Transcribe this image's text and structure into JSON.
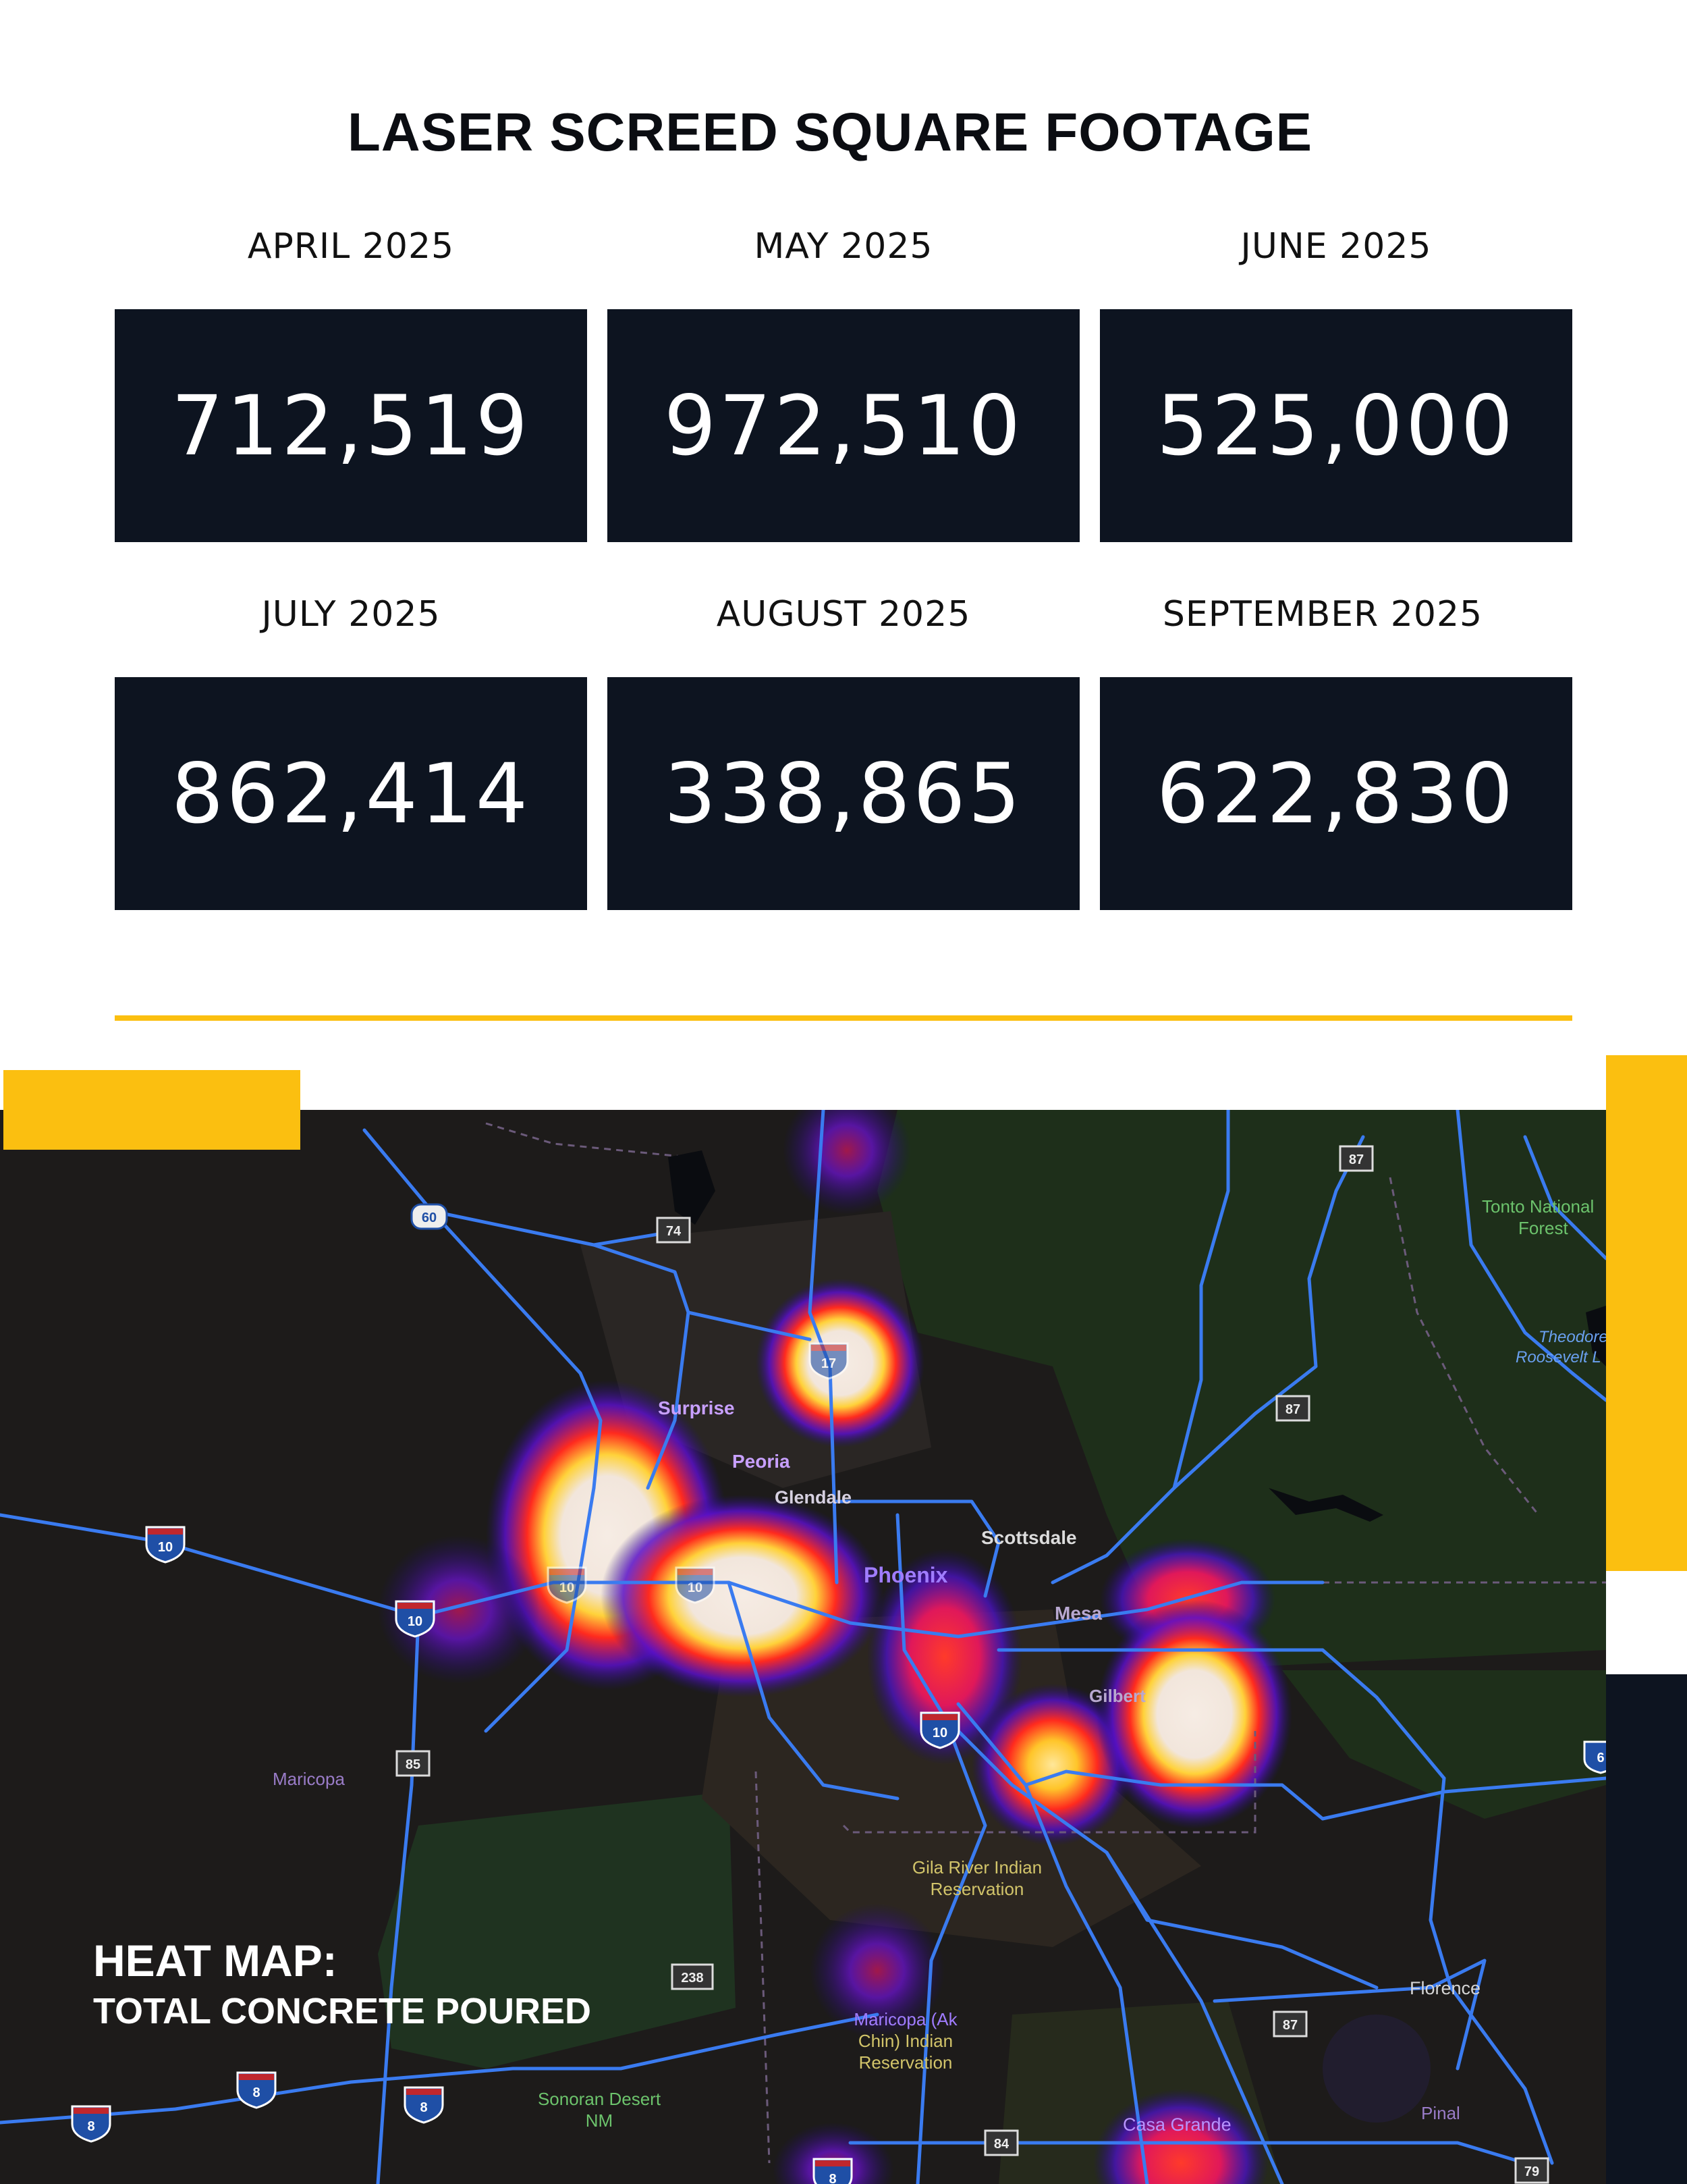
{
  "title": "LASER SCREED SQUARE FOOTAGE",
  "stats": [
    {
      "label": "APRIL 2025",
      "value": "712,519"
    },
    {
      "label": "MAY 2025",
      "value": "972,510"
    },
    {
      "label": "JUNE 2025",
      "value": "525,000"
    },
    {
      "label": "JULY 2025",
      "value": "862,414"
    },
    {
      "label": "AUGUST 2025",
      "value": "338,865"
    },
    {
      "label": "SEPTEMBER 2025",
      "value": "622,830"
    }
  ],
  "colors": {
    "accent": "#fbbf10",
    "box": "#0d1420",
    "map_bg": "#1d1b1a",
    "road": "#3a7bf0"
  },
  "map": {
    "caption_line1": "HEAT MAP:",
    "caption_line2": "TOTAL CONCRETE POURED",
    "places": {
      "surprise": "Surprise",
      "peoria": "Peoria",
      "glendale": "Glendale",
      "scottsdale": "Scottsdale",
      "phoenix": "Phoenix",
      "mesa": "Mesa",
      "gilbert": "Gilbert",
      "maricopa": "Maricopa",
      "gila_1": "Gila River Indian",
      "gila_2": "Reservation",
      "ak_1": "Maricopa (Ak",
      "ak_2": "Chin) Indian",
      "ak_3": "Reservation",
      "sonoran_1": "Sonoran Desert",
      "sonoran_2": "NM",
      "casa_grande": "Casa Grande",
      "florence": "Florence",
      "pinal": "Pinal",
      "tonto_1": "Tonto National",
      "tonto_2": "Forest",
      "theodore_1": "Theodore",
      "theodore_2": "Roosevelt L"
    },
    "shields": {
      "i10a": "10",
      "i10b": "10",
      "i10c": "10",
      "i10d": "10",
      "i10e": "10",
      "i17": "17",
      "i8a": "8",
      "i8b": "8",
      "i8c": "8",
      "i8d": "8",
      "us60": "60",
      "sr74": "74",
      "sr87a": "87",
      "sr87b": "87",
      "sr87c": "87",
      "sr85": "85",
      "sr238": "238",
      "sr84": "84",
      "sr79": "79",
      "sr6": "6"
    }
  }
}
